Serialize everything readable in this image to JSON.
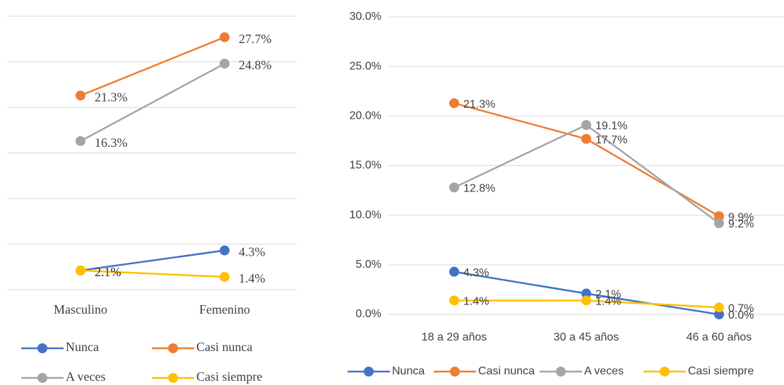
{
  "chart_data": [
    {
      "type": "line",
      "categories": [
        "Masculino",
        "Femenino"
      ],
      "series": [
        {
          "name": "Nunca",
          "color": "#4472c4",
          "values": [
            2.1,
            4.3
          ],
          "value_labels": [
            "2.1%",
            "4.3%"
          ]
        },
        {
          "name": "Casi nunca",
          "color": "#ed7d31",
          "values": [
            21.3,
            27.7
          ],
          "value_labels": [
            "21.3%",
            "27.7%"
          ]
        },
        {
          "name": "A veces",
          "color": "#a5a5a5",
          "values": [
            16.3,
            24.8
          ],
          "value_labels": [
            "16.3%",
            "24.8%"
          ]
        },
        {
          "name": "Casi siempre",
          "color": "#ffc000",
          "values": [
            2.1,
            1.4
          ],
          "value_labels": [
            "2.1%",
            "1.4%"
          ]
        }
      ],
      "ylim": [
        0,
        30
      ],
      "yticks": [
        0,
        5,
        10,
        15,
        20,
        25,
        30
      ],
      "show_tick_labels": false,
      "grid": true,
      "legend": "bottom"
    },
    {
      "type": "line",
      "categories": [
        "18 a 29 años",
        "30 a 45 años",
        "46 a 60 años"
      ],
      "series": [
        {
          "name": "Nunca",
          "color": "#4472c4",
          "values": [
            4.3,
            2.1,
            0.0
          ],
          "value_labels": [
            "4.3%",
            "2.1%",
            "0.0%"
          ]
        },
        {
          "name": "Casi nunca",
          "color": "#ed7d31",
          "values": [
            21.3,
            17.7,
            9.9
          ],
          "value_labels": [
            "21.3%",
            "17.7%",
            "9.9%"
          ]
        },
        {
          "name": "A veces",
          "color": "#a5a5a5",
          "values": [
            12.8,
            19.1,
            9.2
          ],
          "value_labels": [
            "12.8%",
            "19.1%",
            "9.2%"
          ]
        },
        {
          "name": "Casi siempre",
          "color": "#ffc000",
          "values": [
            1.4,
            1.4,
            0.7
          ],
          "value_labels": [
            "1.4%",
            "1.4%",
            "0.7%"
          ]
        }
      ],
      "ylim": [
        0,
        30
      ],
      "yticks": [
        {
          "value": 0,
          "label": "0.0%"
        },
        {
          "value": 5,
          "label": "5.0%"
        },
        {
          "value": 10,
          "label": "10.0%"
        },
        {
          "value": 15,
          "label": "15.0%"
        },
        {
          "value": 20,
          "label": "20.0%"
        },
        {
          "value": 25,
          "label": "25.0%"
        },
        {
          "value": 30,
          "label": "30.0%"
        }
      ],
      "show_tick_labels": true,
      "grid": true,
      "legend": "bottom"
    }
  ]
}
